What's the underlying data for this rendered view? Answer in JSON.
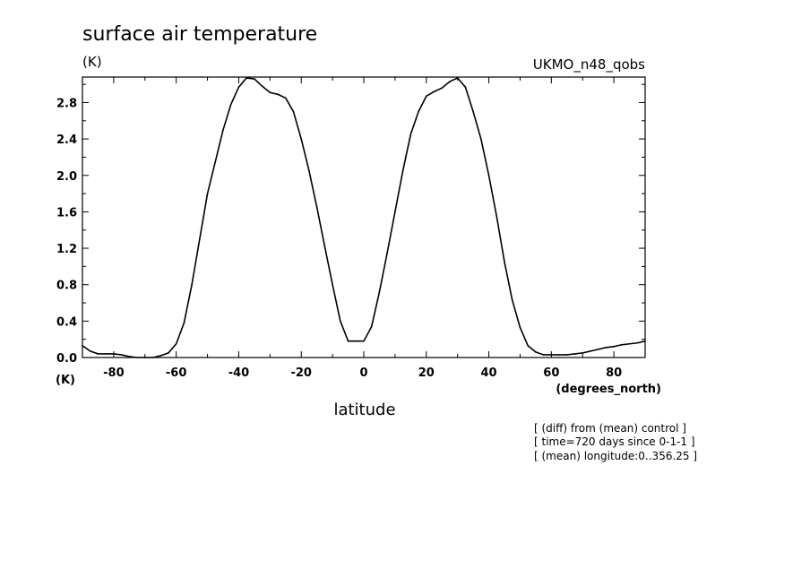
{
  "chart_data": {
    "type": "line",
    "title": "surface air temperature",
    "ylabel_unit": "(K)",
    "ylabel_unit_bottom": "(K)",
    "model_label": "UKMO_n48_qobs",
    "xlabel": "latitude",
    "xunit": "(degrees_north)",
    "annotations": [
      "[ (diff) from (mean) control ]",
      "[ time=720 days since 0-1-1 ]",
      "[ (mean) longitude:0..356.25 ]"
    ],
    "xlim": [
      -90,
      90
    ],
    "ylim": [
      0,
      3.08
    ],
    "xticks": [
      -80,
      -60,
      -40,
      -20,
      0,
      20,
      40,
      60,
      80
    ],
    "xtick_labels": [
      "-80",
      "-60",
      "-40",
      "-20",
      "0",
      "20",
      "40",
      "60",
      "80"
    ],
    "yticks": [
      0.0,
      0.4,
      0.8,
      1.2,
      1.6,
      2.0,
      2.4,
      2.8
    ],
    "ytick_labels": [
      "0.0",
      "0.4",
      "0.8",
      "1.2",
      "1.6",
      "2.0",
      "2.4",
      "2.8"
    ],
    "grid": false,
    "series": [
      {
        "x": [
          -90,
          -87.5,
          -85,
          -82.5,
          -80,
          -77.5,
          -75,
          -72.5,
          -70,
          -67.5,
          -65,
          -62.5,
          -60,
          -57.5,
          -55,
          -52.5,
          -50,
          -47.5,
          -45,
          -42.5,
          -40,
          -37.5,
          -35,
          -32.5,
          -30,
          -27.5,
          -25,
          -22.5,
          -20,
          -17.5,
          -15,
          -12.5,
          -10,
          -7.5,
          -5,
          -2.5,
          0,
          2.5,
          5,
          7.5,
          10,
          12.5,
          15,
          17.5,
          20,
          22.5,
          25,
          27.5,
          30,
          32.5,
          35,
          37.5,
          40,
          42.5,
          45,
          47.5,
          50,
          52.5,
          55,
          57.5,
          60,
          62.5,
          65,
          67.5,
          70,
          72.5,
          75,
          77.5,
          80,
          82.5,
          85,
          87.5,
          90
        ],
        "y": [
          0.13,
          0.07,
          0.04,
          0.04,
          0.04,
          0.03,
          0.01,
          0.0,
          0.0,
          0.0,
          0.02,
          0.05,
          0.15,
          0.38,
          0.8,
          1.3,
          1.8,
          2.15,
          2.5,
          2.78,
          2.97,
          3.07,
          3.06,
          2.98,
          2.91,
          2.89,
          2.85,
          2.7,
          2.4,
          2.05,
          1.65,
          1.22,
          0.8,
          0.4,
          0.18,
          0.18,
          0.18,
          0.34,
          0.72,
          1.15,
          1.6,
          2.05,
          2.45,
          2.7,
          2.87,
          2.92,
          2.96,
          3.03,
          3.07,
          2.97,
          2.7,
          2.4,
          2.0,
          1.55,
          1.05,
          0.63,
          0.33,
          0.13,
          0.06,
          0.03,
          0.03,
          0.03,
          0.03,
          0.04,
          0.05,
          0.07,
          0.09,
          0.11,
          0.12,
          0.14,
          0.15,
          0.16,
          0.18
        ]
      }
    ],
    "colors": {
      "line": "#000000",
      "axes": "#000000",
      "background": "#ffffff"
    }
  }
}
